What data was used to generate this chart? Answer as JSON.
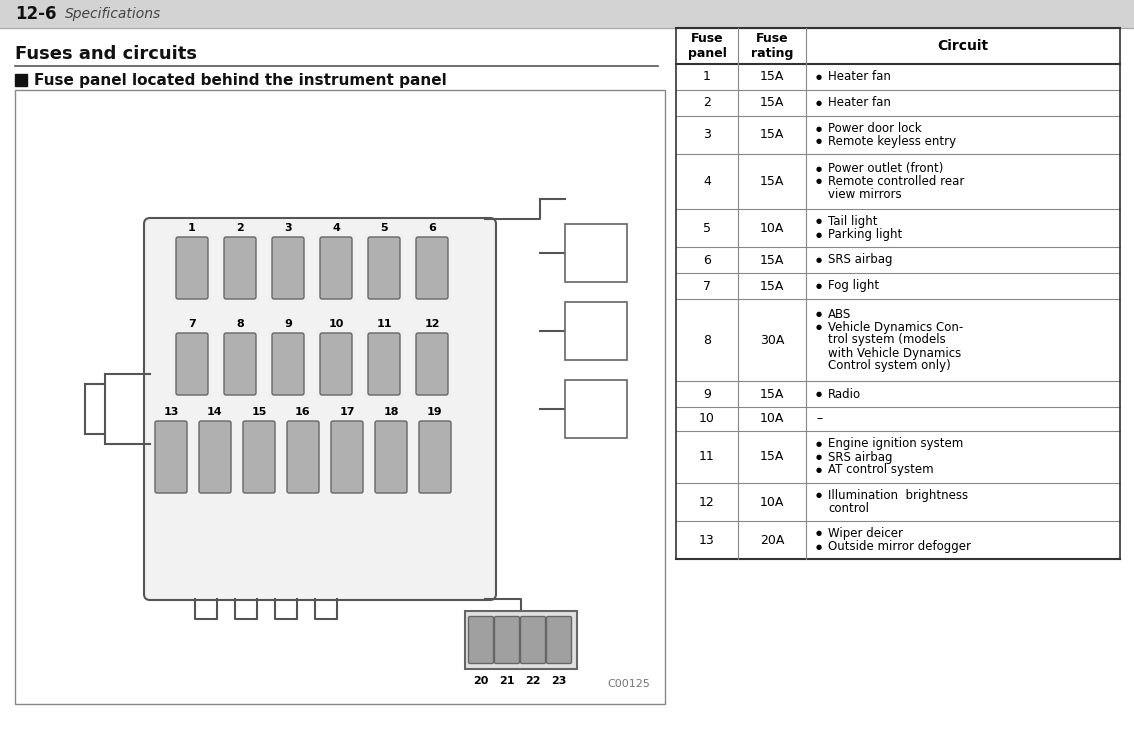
{
  "title_num": "12-6",
  "title_italic": "Specifications",
  "section_title": "Fuses and circuits",
  "subsection_title": "Fuse panel located behind the instrument panel",
  "bg_color": "#ffffff",
  "fuse_color": "#aaaaaa",
  "diagram_code": "C00125",
  "fuses": [
    {
      "num": 1,
      "rating": "15A",
      "circuits": [
        [
          "Heater fan"
        ]
      ]
    },
    {
      "num": 2,
      "rating": "15A",
      "circuits": [
        [
          "Heater fan"
        ]
      ]
    },
    {
      "num": 3,
      "rating": "15A",
      "circuits": [
        [
          "Power door lock"
        ],
        [
          "Remote keyless entry"
        ]
      ]
    },
    {
      "num": 4,
      "rating": "15A",
      "circuits": [
        [
          "Power outlet (front)"
        ],
        [
          "Remote controlled rear",
          "view mirrors"
        ]
      ]
    },
    {
      "num": 5,
      "rating": "10A",
      "circuits": [
        [
          "Tail light"
        ],
        [
          "Parking light"
        ]
      ]
    },
    {
      "num": 6,
      "rating": "15A",
      "circuits": [
        [
          "SRS airbag"
        ]
      ]
    },
    {
      "num": 7,
      "rating": "15A",
      "circuits": [
        [
          "Fog light"
        ]
      ]
    },
    {
      "num": 8,
      "rating": "30A",
      "circuits": [
        [
          "ABS"
        ],
        [
          "Vehicle Dynamics Con-",
          "trol system (models",
          "with Vehicle Dynamics",
          "Control system only)"
        ]
      ]
    },
    {
      "num": 9,
      "rating": "15A",
      "circuits": [
        [
          "Radio"
        ]
      ]
    },
    {
      "num": 10,
      "rating": "10A",
      "circuits": []
    },
    {
      "num": 11,
      "rating": "15A",
      "circuits": [
        [
          "Engine ignition system"
        ],
        [
          "SRS airbag"
        ],
        [
          "AT control system"
        ]
      ]
    },
    {
      "num": 12,
      "rating": "10A",
      "circuits": [
        [
          "Illumination  brightness",
          "control"
        ]
      ]
    },
    {
      "num": 13,
      "rating": "20A",
      "circuits": [
        [
          "Wiper deicer"
        ],
        [
          "Outside mirror defogger"
        ]
      ]
    }
  ]
}
